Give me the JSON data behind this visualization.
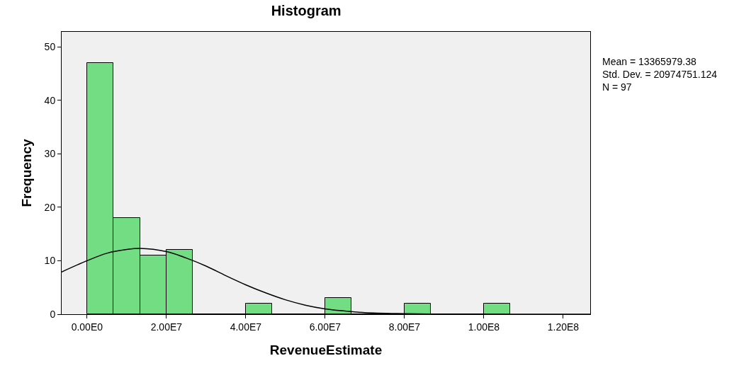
{
  "chart_data": {
    "type": "histogram",
    "title": "Histogram",
    "xlabel": "RevenueEstimate",
    "ylabel": "Frequency",
    "bins": [
      0,
      6666667,
      13333333,
      20000000,
      26666667,
      33333333,
      40000000,
      46666667,
      53333333,
      60000000,
      66666667,
      73333333,
      80000000,
      86666667,
      93333333,
      100000000,
      106666667
    ],
    "values": [
      47,
      18,
      11,
      12,
      0,
      0,
      2,
      0,
      0,
      3,
      0,
      0,
      2,
      0,
      0,
      2
    ],
    "color": "#72dd82",
    "series": [
      {
        "type": "line",
        "color": "#000000",
        "x": [
          -6400000,
          0,
          5000000,
          10000000,
          13400000,
          20000000,
          25000000,
          30000000,
          35000000,
          40000000,
          45000000,
          50000000,
          55000000,
          60000000,
          65000000,
          70000000,
          80000000,
          90000000,
          100000000,
          126800000
        ],
        "values": [
          7.9,
          10.0,
          11.4,
          12.1,
          12.3,
          11.7,
          10.5,
          9.0,
          7.2,
          5.5,
          4.0,
          2.7,
          1.7,
          1.0,
          0.6,
          0.3,
          0.1,
          0,
          0,
          0
        ]
      }
    ],
    "xlim": [
      -6400000,
      126800000
    ],
    "ylim": [
      0,
      52.8
    ],
    "xticks": [
      {
        "value": 0,
        "label": "0.00E0"
      },
      {
        "value": 20000000,
        "label": "2.00E7"
      },
      {
        "value": 40000000,
        "label": "4.00E7"
      },
      {
        "value": 60000000,
        "label": "6.00E7"
      },
      {
        "value": 80000000,
        "label": "8.00E7"
      },
      {
        "value": 100000000,
        "label": "1.00E8"
      },
      {
        "value": 120000000,
        "label": "1.20E8"
      }
    ],
    "yticks": [
      0,
      10,
      20,
      30,
      40,
      50
    ],
    "annotations": [
      "Mean = 13365979.38",
      "Std. Dev. = 20974751.124",
      "N = 97"
    ]
  }
}
